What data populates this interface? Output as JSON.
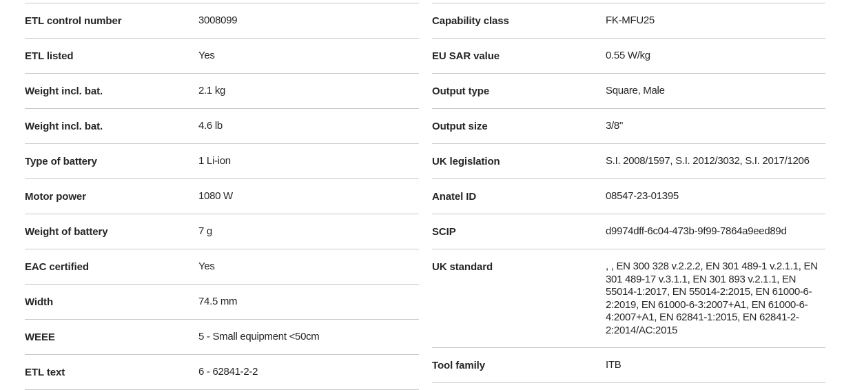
{
  "colors": {
    "text": "#262626",
    "border": "#c9c9c9",
    "background": "#ffffff"
  },
  "table_left": {
    "rows": [
      {
        "label": "ETL control number",
        "value": "3008099"
      },
      {
        "label": "ETL listed",
        "value": "Yes"
      },
      {
        "label": "Weight incl. bat.",
        "value": "2.1 kg"
      },
      {
        "label": "Weight incl. bat.",
        "value": "4.6 lb"
      },
      {
        "label": "Type of battery",
        "value": "1 Li-ion"
      },
      {
        "label": "Motor power",
        "value": "1080 W"
      },
      {
        "label": "Weight of battery",
        "value": "7 g"
      },
      {
        "label": "EAC certified",
        "value": "Yes"
      },
      {
        "label": "Width",
        "value": "74.5 mm"
      },
      {
        "label": "WEEE",
        "value": "5 - Small equipment <50cm"
      },
      {
        "label": "ETL text",
        "value": "6 - 62841-2-2"
      }
    ]
  },
  "table_right": {
    "rows": [
      {
        "label": "Capability class",
        "value": "FK-MFU25"
      },
      {
        "label": "EU SAR value",
        "value": "0.55 W/kg"
      },
      {
        "label": "Output type",
        "value": "Square, Male"
      },
      {
        "label": "Output size",
        "value": "3/8\""
      },
      {
        "label": "UK legislation",
        "value": "S.I. 2008/1597, S.I. 2012/3032, S.I. 2017/1206"
      },
      {
        "label": "Anatel ID",
        "value": "08547-23-01395"
      },
      {
        "label": "SCIP",
        "value": "d9974dff-6c04-473b-9f99-7864a9eed89d"
      },
      {
        "label": "UK standard",
        "value": ", , EN 300 328 v.2.2.2, EN 301 489-1 v.2.1.1, EN 301 489-17 v.3.1.1, EN 301 893 v.2.1.1, EN 55014-1:2017, EN 55014-2:2015, EN 61000-6-2:2019, EN 61000-6-3:2007+A1, EN 61000-6-4:2007+A1, EN 62841-1:2015, EN 62841-2-2:2014/AC:2015"
      },
      {
        "label": "Tool family",
        "value": "ITB"
      }
    ]
  }
}
